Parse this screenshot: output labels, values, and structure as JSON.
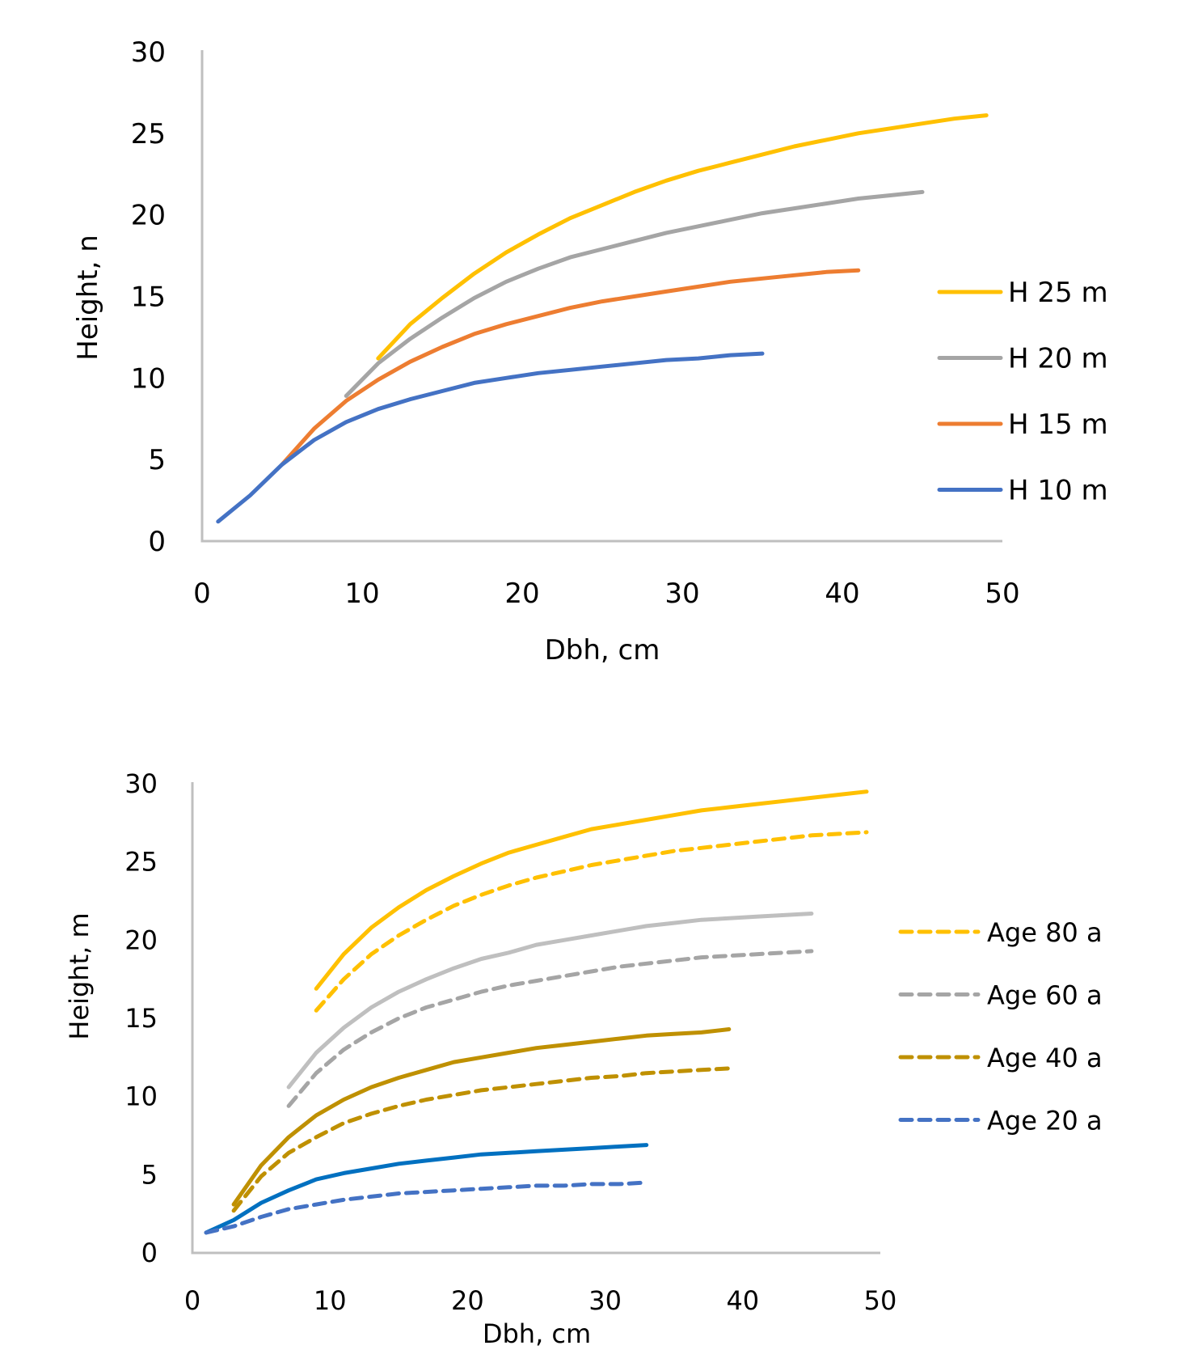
{
  "chart_data": [
    {
      "type": "line",
      "title": "",
      "xlabel": "Dbh, cm",
      "ylabel": "Height, n",
      "xlim": [
        0,
        50
      ],
      "ylim": [
        0,
        30
      ],
      "xticks": [
        "0",
        "10",
        "20",
        "30",
        "40",
        "50"
      ],
      "yticks": [
        "0",
        "5",
        "10",
        "15",
        "20",
        "25",
        "30"
      ],
      "grid": false,
      "legend_position": "right",
      "series": [
        {
          "name": "H 25 m",
          "color": "#FFC000",
          "dash": "solid",
          "x": [
            11,
            13,
            15,
            17,
            19,
            21,
            23,
            25,
            27,
            29,
            31,
            33,
            35,
            37,
            39,
            41,
            43,
            45,
            47,
            49
          ],
          "y": [
            11.2,
            13.3,
            14.9,
            16.4,
            17.7,
            18.8,
            19.8,
            20.6,
            21.4,
            22.1,
            22.7,
            23.2,
            23.7,
            24.2,
            24.6,
            25.0,
            25.3,
            25.6,
            25.9,
            26.1
          ]
        },
        {
          "name": "H 20 m",
          "color": "#A5A5A5",
          "dash": "solid",
          "x": [
            9,
            11,
            13,
            15,
            17,
            19,
            21,
            23,
            25,
            27,
            29,
            31,
            33,
            35,
            37,
            39,
            41,
            43,
            45
          ],
          "y": [
            8.9,
            10.9,
            12.4,
            13.7,
            14.9,
            15.9,
            16.7,
            17.4,
            17.9,
            18.4,
            18.9,
            19.3,
            19.7,
            20.1,
            20.4,
            20.7,
            21.0,
            21.2,
            21.4
          ]
        },
        {
          "name": "H 15 m",
          "color": "#ED7D31",
          "dash": "solid",
          "x": [
            5,
            7,
            9,
            11,
            13,
            15,
            17,
            19,
            21,
            23,
            25,
            27,
            29,
            31,
            33,
            35,
            37,
            39,
            41
          ],
          "y": [
            4.7,
            6.9,
            8.6,
            9.9,
            11.0,
            11.9,
            12.7,
            13.3,
            13.8,
            14.3,
            14.7,
            15.0,
            15.3,
            15.6,
            15.9,
            16.1,
            16.3,
            16.5,
            16.6
          ]
        },
        {
          "name": "H 10 m",
          "color": "#4472C4",
          "dash": "solid",
          "x": [
            1,
            3,
            5,
            7,
            9,
            11,
            13,
            15,
            17,
            19,
            21,
            23,
            25,
            27,
            29,
            31,
            33,
            35
          ],
          "y": [
            1.2,
            2.8,
            4.7,
            6.2,
            7.3,
            8.1,
            8.7,
            9.2,
            9.7,
            10.0,
            10.3,
            10.5,
            10.7,
            10.9,
            11.1,
            11.2,
            11.4,
            11.5
          ]
        }
      ]
    },
    {
      "type": "line",
      "title": "",
      "xlabel": "Dbh, cm",
      "ylabel": "Height, m",
      "xlim": [
        0,
        50
      ],
      "ylim": [
        0,
        30
      ],
      "xticks": [
        "0",
        "10",
        "20",
        "30",
        "40",
        "50"
      ],
      "yticks": [
        "0",
        "5",
        "10",
        "15",
        "20",
        "25",
        "30"
      ],
      "grid": false,
      "legend_position": "right",
      "legend": [
        {
          "name": "Age 80 a",
          "color": "#FFC000"
        },
        {
          "name": "Age 60 a",
          "color": "#A5A5A5"
        },
        {
          "name": "Age 40 a",
          "color": "#BF9000"
        },
        {
          "name": "Age 20 a",
          "color": "#4472C4"
        }
      ],
      "series": [
        {
          "name": "Age 80 a (solid)",
          "color": "#FFC000",
          "dash": "solid",
          "x": [
            9,
            11,
            13,
            15,
            17,
            19,
            21,
            23,
            25,
            27,
            29,
            31,
            33,
            35,
            37,
            39,
            41,
            43,
            45,
            47,
            49
          ],
          "y": [
            16.9,
            19.1,
            20.8,
            22.1,
            23.2,
            24.1,
            24.9,
            25.6,
            26.1,
            26.6,
            27.1,
            27.4,
            27.7,
            28.0,
            28.3,
            28.5,
            28.7,
            28.9,
            29.1,
            29.3,
            29.5
          ]
        },
        {
          "name": "Age 80 a",
          "color": "#FFC000",
          "dash": "dashed",
          "x": [
            9,
            11,
            13,
            15,
            17,
            19,
            21,
            23,
            25,
            27,
            29,
            31,
            33,
            35,
            37,
            39,
            41,
            43,
            45,
            47,
            49
          ],
          "y": [
            15.5,
            17.5,
            19.1,
            20.3,
            21.3,
            22.2,
            22.9,
            23.5,
            24.0,
            24.4,
            24.8,
            25.1,
            25.4,
            25.7,
            25.9,
            26.1,
            26.3,
            26.5,
            26.7,
            26.8,
            26.9
          ]
        },
        {
          "name": "Age 60 a (solid)",
          "color": "#BFBFBF",
          "dash": "solid",
          "x": [
            7,
            9,
            11,
            13,
            15,
            17,
            19,
            21,
            23,
            25,
            27,
            29,
            31,
            33,
            35,
            37,
            39,
            41,
            43,
            45
          ],
          "y": [
            10.6,
            12.8,
            14.4,
            15.7,
            16.7,
            17.5,
            18.2,
            18.8,
            19.2,
            19.7,
            20.0,
            20.3,
            20.6,
            20.9,
            21.1,
            21.3,
            21.4,
            21.5,
            21.6,
            21.7
          ]
        },
        {
          "name": "Age 60 a",
          "color": "#A5A5A5",
          "dash": "dashed",
          "x": [
            7,
            9,
            11,
            13,
            15,
            17,
            19,
            21,
            23,
            25,
            27,
            29,
            31,
            33,
            35,
            37,
            39,
            41,
            43,
            45
          ],
          "y": [
            9.4,
            11.5,
            13.0,
            14.1,
            15.0,
            15.7,
            16.2,
            16.7,
            17.1,
            17.4,
            17.7,
            18.0,
            18.3,
            18.5,
            18.7,
            18.9,
            19.0,
            19.1,
            19.2,
            19.3
          ]
        },
        {
          "name": "Age 40 a (solid)",
          "color": "#BF9000",
          "dash": "solid",
          "x": [
            3,
            5,
            7,
            9,
            11,
            13,
            15,
            17,
            19,
            21,
            23,
            25,
            27,
            29,
            31,
            33,
            35,
            37,
            39
          ],
          "y": [
            3.1,
            5.6,
            7.4,
            8.8,
            9.8,
            10.6,
            11.2,
            11.7,
            12.2,
            12.5,
            12.8,
            13.1,
            13.3,
            13.5,
            13.7,
            13.9,
            14.0,
            14.1,
            14.3
          ]
        },
        {
          "name": "Age 40 a",
          "color": "#BF9000",
          "dash": "dashed",
          "x": [
            3,
            5,
            7,
            9,
            11,
            13,
            15,
            17,
            19,
            21,
            23,
            25,
            27,
            29,
            31,
            33,
            35,
            37,
            39
          ],
          "y": [
            2.7,
            4.9,
            6.4,
            7.4,
            8.3,
            8.9,
            9.4,
            9.8,
            10.1,
            10.4,
            10.6,
            10.8,
            11.0,
            11.2,
            11.3,
            11.5,
            11.6,
            11.7,
            11.8
          ]
        },
        {
          "name": "Age 20 a (solid)",
          "color": "#0070C0",
          "dash": "solid",
          "x": [
            1,
            3,
            5,
            7,
            9,
            11,
            13,
            15,
            17,
            19,
            21,
            23,
            25,
            27,
            29,
            31,
            33
          ],
          "y": [
            1.3,
            2.1,
            3.2,
            4.0,
            4.7,
            5.1,
            5.4,
            5.7,
            5.9,
            6.1,
            6.3,
            6.4,
            6.5,
            6.6,
            6.7,
            6.8,
            6.9
          ]
        },
        {
          "name": "Age 20 a",
          "color": "#4472C4",
          "dash": "dashed",
          "x": [
            1,
            3,
            5,
            7,
            9,
            11,
            13,
            15,
            17,
            19,
            21,
            23,
            25,
            27,
            29,
            31,
            33
          ],
          "y": [
            1.3,
            1.7,
            2.3,
            2.8,
            3.1,
            3.4,
            3.6,
            3.8,
            3.9,
            4.0,
            4.1,
            4.2,
            4.3,
            4.3,
            4.4,
            4.4,
            4.5
          ]
        }
      ]
    }
  ],
  "top_chart": {
    "xlabel": "Dbh, cm",
    "ylabel": "Height, n",
    "legend": [
      "H 25 m",
      "H 20 m",
      "H 15 m",
      "H 10 m"
    ]
  },
  "bottom_chart": {
    "xlabel": "Dbh, cm",
    "ylabel": "Height, m",
    "legend": [
      "Age 80 a",
      "Age 60 a",
      "Age 40 a",
      "Age 20 a"
    ]
  }
}
